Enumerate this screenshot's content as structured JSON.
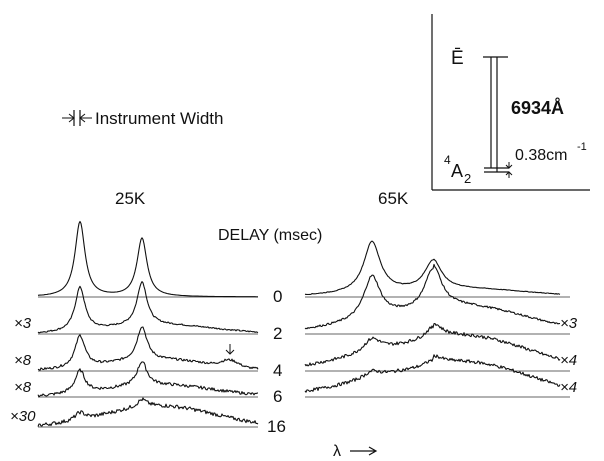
{
  "chart_data": {
    "type": "line",
    "title": "",
    "xlabel": "λ",
    "ylabel": "",
    "panel_labels": [
      "25K",
      "65K"
    ],
    "delay_header": "DELAY (msec)",
    "instrument_label": "Instrument Width",
    "delays": [
      "0",
      "2",
      "4",
      "6",
      "16"
    ],
    "gains_25K": [
      "",
      "×3",
      "×8",
      "×8",
      "×30"
    ],
    "gains_65K": [
      "",
      "×3",
      "×4",
      "×4"
    ],
    "series_25K": [
      {
        "delay": "0",
        "gain": "",
        "peak1": 1.0,
        "peak2": 0.78,
        "bump": 0.0,
        "noise": 0.0
      },
      {
        "delay": "2",
        "gain": "×3",
        "peak1": 0.58,
        "peak2": 0.58,
        "bump": 0.12,
        "noise": 0.02
      },
      {
        "delay": "4",
        "gain": "×8",
        "peak1": 0.42,
        "peak2": 0.45,
        "bump": 0.15,
        "noise": 0.03
      },
      {
        "delay": "6",
        "gain": "×8",
        "peak1": 0.3,
        "peak2": 0.32,
        "bump": 0.16,
        "noise": 0.04
      },
      {
        "delay": "16",
        "gain": "×30",
        "peak1": 0.1,
        "peak2": 0.1,
        "bump": 0.28,
        "noise": 0.05
      }
    ],
    "series_65K": [
      {
        "delay": "0",
        "gain": "",
        "peak1": 0.78,
        "peak2": 0.45,
        "bump": 0.1,
        "noise": 0.01
      },
      {
        "delay": "2",
        "gain": "×3",
        "peak1": 0.65,
        "peak2": 0.65,
        "bump": 0.35,
        "noise": 0.03
      },
      {
        "delay": "4",
        "gain": "×4",
        "peak1": 0.2,
        "peak2": 0.22,
        "bump": 0.45,
        "noise": 0.05
      },
      {
        "delay": "6",
        "gain": "×4",
        "peak1": 0.1,
        "peak2": 0.12,
        "bump": 0.45,
        "noise": 0.05
      }
    ],
    "arrow_marker": {
      "panel": "25K",
      "delay": "4",
      "symbol": "↓"
    }
  },
  "inset": {
    "upper_level": "Ē",
    "lower_level_sup": "4",
    "lower_level_base": "A",
    "lower_level_sub": "2",
    "wavelength": "6934Å",
    "splitting": "0.38cm",
    "splitting_sup": "-1"
  }
}
